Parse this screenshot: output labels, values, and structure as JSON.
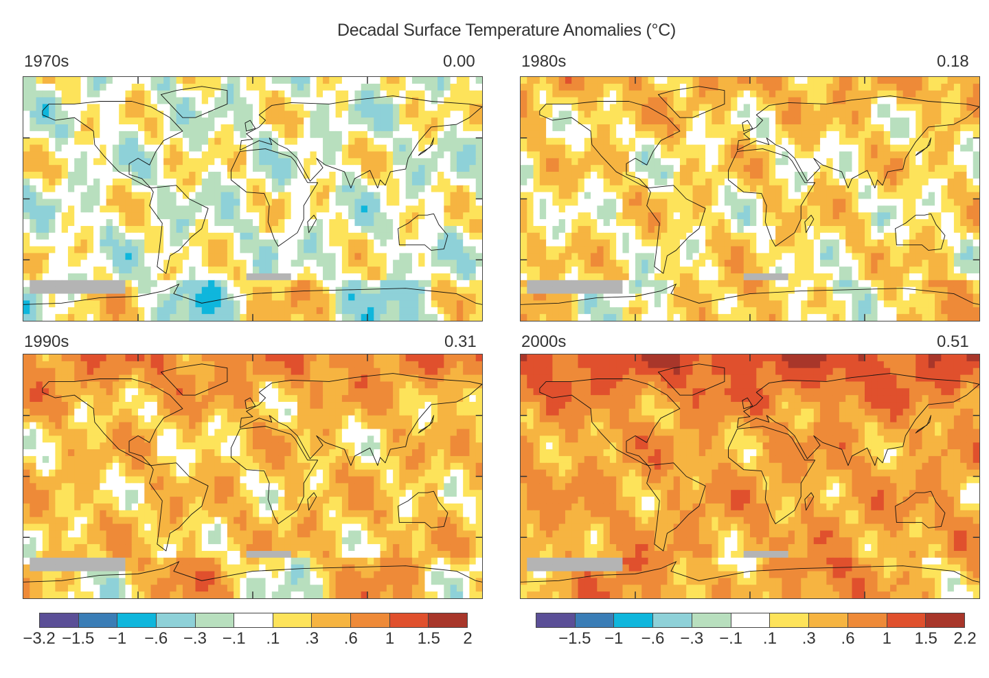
{
  "title": "Decadal Surface Temperature Anomalies (°C)",
  "panels": [
    {
      "decade": "1970s",
      "mean_anomaly": "0.00"
    },
    {
      "decade": "1980s",
      "mean_anomaly": "0.18"
    },
    {
      "decade": "1990s",
      "mean_anomaly": "0.31"
    },
    {
      "decade": "2000s",
      "mean_anomaly": "0.51"
    }
  ],
  "colorbar_colors": [
    "#5b4f97",
    "#3a7db6",
    "#0fb6dc",
    "#8ed1d8",
    "#b8dfbe",
    "#ffffff",
    "#fde35a",
    "#f6b441",
    "#ee8a38",
    "#e0502d",
    "#a8362a"
  ],
  "missing_data_color": "#b4b4b4",
  "colorbars": [
    {
      "labels": [
        "−3.2",
        "−1.5",
        "−1",
        "−.6",
        "−.3",
        "−.1",
        ".1",
        ".3",
        ".6",
        "1",
        "1.5",
        "2"
      ]
    },
    {
      "labels": [
        "−1.5",
        "−1",
        "−.6",
        "−.3",
        "−.1",
        ".1",
        ".3",
        ".6",
        "1",
        "1.5",
        "2.2"
      ]
    }
  ]
}
